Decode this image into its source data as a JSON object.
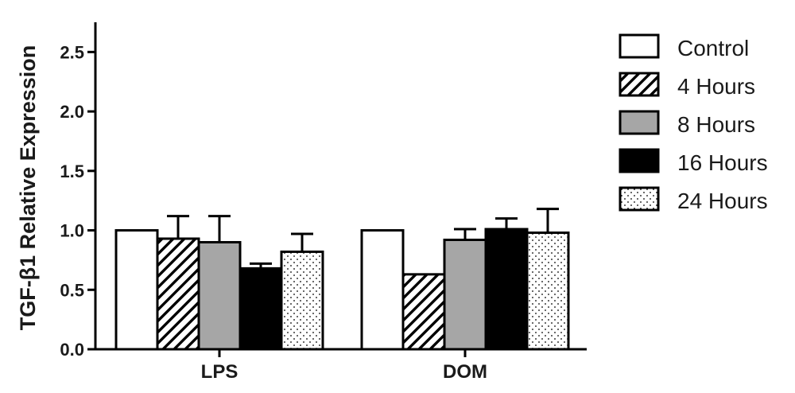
{
  "chart_data": {
    "type": "bar",
    "ylabel": "TGF-β1 Relative Expression",
    "xlabel": "",
    "ylim": [
      0,
      2.75
    ],
    "yticks": [
      "0.0",
      "0.5",
      "1.0",
      "1.5",
      "2.0",
      "2.5"
    ],
    "categories": [
      "LPS",
      "DOM"
    ],
    "legend_position": "right",
    "series": [
      {
        "name": "Control",
        "pattern": "white",
        "values": [
          1.0,
          1.0
        ],
        "errors": [
          0.0,
          0.0
        ]
      },
      {
        "name": "4 Hours",
        "pattern": "hatched",
        "values": [
          0.93,
          0.63
        ],
        "errors": [
          0.19,
          0.0
        ]
      },
      {
        "name": "8 Hours",
        "pattern": "gray",
        "values": [
          0.9,
          0.92
        ],
        "errors": [
          0.22,
          0.09
        ]
      },
      {
        "name": "16 Hours",
        "pattern": "black",
        "values": [
          0.68,
          1.01
        ],
        "errors": [
          0.04,
          0.09
        ]
      },
      {
        "name": "24 Hours",
        "pattern": "dotted",
        "values": [
          0.82,
          0.98
        ],
        "errors": [
          0.15,
          0.2
        ]
      }
    ],
    "colors": {
      "gray": "#a6a6a6",
      "black": "#000000",
      "white": "#ffffff"
    }
  }
}
